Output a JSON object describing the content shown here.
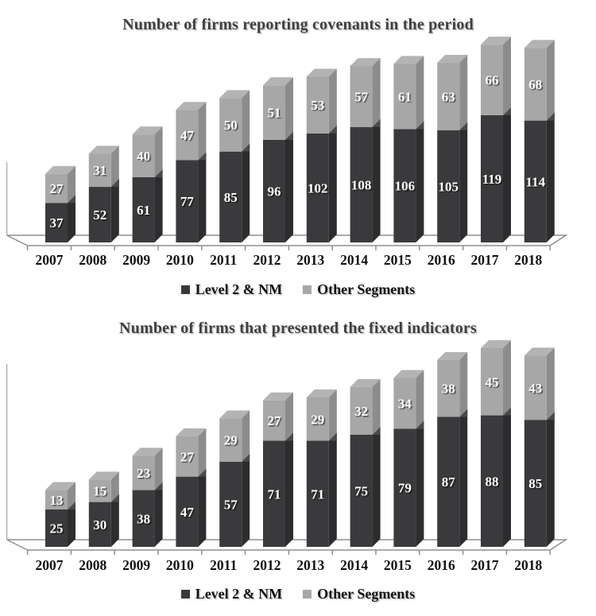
{
  "chart_data": [
    {
      "type": "bar",
      "stacked": true,
      "effect": "3d",
      "title": "Number of firms reporting covenants in the period",
      "categories": [
        "2007",
        "2008",
        "2009",
        "2010",
        "2011",
        "2012",
        "2013",
        "2014",
        "2015",
        "2016",
        "2017",
        "2018"
      ],
      "series": [
        {
          "name": "Level 2 & NM",
          "values": [
            37,
            52,
            61,
            77,
            85,
            96,
            102,
            108,
            106,
            105,
            119,
            114
          ]
        },
        {
          "name": "Other Segments",
          "values": [
            27,
            31,
            40,
            47,
            50,
            51,
            53,
            57,
            61,
            63,
            66,
            68
          ]
        }
      ],
      "value_labels": "inside-white",
      "legend_position": "bottom",
      "xlabel": "",
      "ylabel": "",
      "y_axis_labels_shown": false
    },
    {
      "type": "bar",
      "stacked": true,
      "effect": "3d",
      "title": "Number of firms that presented the fixed indicators",
      "categories": [
        "2007",
        "2008",
        "2009",
        "2010",
        "2011",
        "2012",
        "2013",
        "2014",
        "2015",
        "2016",
        "2017",
        "2018"
      ],
      "series": [
        {
          "name": "Level 2 & NM",
          "values": [
            25,
            30,
            38,
            47,
            57,
            71,
            71,
            75,
            79,
            87,
            88,
            85
          ]
        },
        {
          "name": "Other Segments",
          "values": [
            13,
            15,
            23,
            27,
            29,
            27,
            29,
            32,
            34,
            38,
            45,
            43
          ]
        }
      ],
      "value_labels": "inside-white",
      "legend_position": "bottom",
      "xlabel": "",
      "ylabel": "",
      "y_axis_labels_shown": false
    }
  ],
  "colors": {
    "dark_front": "#3a3a3c",
    "dark_side": "#2d2d2f",
    "dark_sliver": "#4a4a4d",
    "gray_front": "#a7a7a7",
    "gray_side": "#8c8c8c",
    "gray_top": "#b3b3b3",
    "title_text": "#3f3f3f",
    "category_text": "#111111",
    "value_text": "#ffffff",
    "axis_line": "#8f8f8f",
    "wall_line": "#ababab",
    "background": "#ffffff"
  }
}
